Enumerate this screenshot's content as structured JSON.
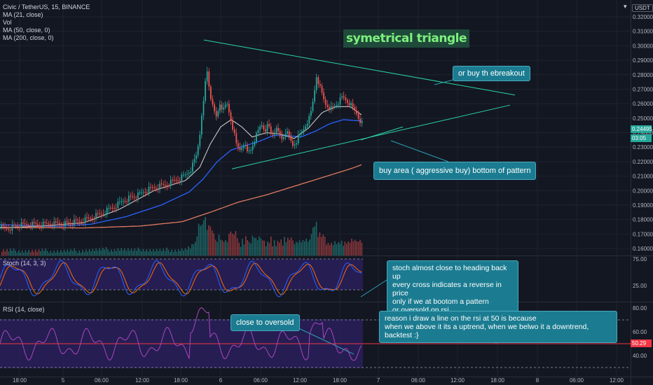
{
  "legend": {
    "symbol": "Civic / TetherUS, 15, BINANCE",
    "ma21": "MA (21, close)",
    "vol": "Vol",
    "ma50": "MA (50, close, 0)",
    "ma200": "MA (200, close, 0)"
  },
  "currency_tag": "USDT",
  "stoch_label": "Stoch (14, 3, 3)",
  "rsi_label": "RSI (14, close)",
  "price_tag": "0.24495",
  "timer_tag": "03:05",
  "rsi_tag": "50.29",
  "annotations": {
    "title": "symetrical triangle",
    "breakout": "or buy th ebreakout",
    "buy_area": "buy area ( aggressive buy) bottom of pattern",
    "stoch_note_1": "stoch almost close to heading back up",
    "stoch_note_2": "every cross indicates a reverse in price",
    "stoch_note_3": "only if we at bootom a pattern",
    "stoch_note_4": "or oversold on rsi",
    "rsi_note_1": "reason i draw a line on the rsi at 50 is because",
    "rsi_note_2": "when we above it its a uptrend, when we belwo it a downtrend, backtest :}",
    "oversold": "close to oversold"
  },
  "colors": {
    "background": "#131722",
    "up": "#26a69a",
    "down": "#ef5350",
    "ma21": "#c8c8c8",
    "ma50": "#2962ff",
    "ma200": "#e07a5f",
    "trendline": "#2bd4a4",
    "pane": "#2a1f5c",
    "stoch_k": "#2962ff",
    "stoch_d": "#ff6d00",
    "rsi": "#ab47bc",
    "rsi_mid": "#f23645",
    "note": "#1b7c91",
    "title_text": "#7cf07c"
  },
  "chart_data": {
    "type": "candlestick",
    "price_axis": {
      "ticks": [
        "0.32000",
        "0.31000",
        "0.30000",
        "0.29000",
        "0.28000",
        "0.27000",
        "0.26000",
        "0.25000",
        "0.24000",
        "0.23000",
        "0.22000",
        "0.21000",
        "0.20000",
        "0.19000",
        "0.18000",
        "0.17000",
        "0.16000"
      ],
      "range": [
        0.155,
        0.325
      ]
    },
    "time_axis": {
      "ticks": [
        "18:00",
        "5",
        "06:00",
        "12:00",
        "18:00",
        "6",
        "06:00",
        "12:00",
        "18:00",
        "7",
        "06:00",
        "12:00",
        "18:00",
        "8",
        "06:00",
        "12:00"
      ]
    },
    "price_anchors": [
      [
        0,
        0.1745
      ],
      [
        10,
        0.1738
      ],
      [
        25,
        0.1755
      ],
      [
        40,
        0.1762
      ],
      [
        55,
        0.176
      ],
      [
        70,
        0.1768
      ],
      [
        85,
        0.177
      ],
      [
        100,
        0.1772
      ],
      [
        115,
        0.1785
      ],
      [
        125,
        0.18
      ],
      [
        135,
        0.182
      ],
      [
        145,
        0.184
      ],
      [
        155,
        0.187
      ],
      [
        165,
        0.1895
      ],
      [
        175,
        0.193
      ],
      [
        185,
        0.195
      ],
      [
        195,
        0.196
      ],
      [
        205,
        0.199
      ],
      [
        215,
        0.201
      ],
      [
        225,
        0.2025
      ],
      [
        235,
        0.2035
      ],
      [
        245,
        0.206
      ],
      [
        255,
        0.208
      ],
      [
        265,
        0.211
      ],
      [
        272,
        0.215
      ],
      [
        280,
        0.225
      ],
      [
        286,
        0.245
      ],
      [
        290,
        0.262
      ],
      [
        294,
        0.285
      ],
      [
        298,
        0.27
      ],
      [
        303,
        0.256
      ],
      [
        308,
        0.25
      ],
      [
        313,
        0.26
      ],
      [
        318,
        0.255
      ],
      [
        323,
        0.26
      ],
      [
        327,
        0.252
      ],
      [
        332,
        0.242
      ],
      [
        337,
        0.23
      ],
      [
        342,
        0.228
      ],
      [
        347,
        0.233
      ],
      [
        352,
        0.226
      ],
      [
        357,
        0.228
      ],
      [
        362,
        0.235
      ],
      [
        367,
        0.24
      ],
      [
        372,
        0.246
      ],
      [
        377,
        0.242
      ],
      [
        382,
        0.245
      ],
      [
        387,
        0.238
      ],
      [
        392,
        0.242
      ],
      [
        397,
        0.239
      ],
      [
        402,
        0.235
      ],
      [
        407,
        0.241
      ],
      [
        412,
        0.236
      ],
      [
        417,
        0.231
      ],
      [
        422,
        0.234
      ],
      [
        427,
        0.238
      ],
      [
        432,
        0.242
      ],
      [
        437,
        0.247
      ],
      [
        442,
        0.251
      ],
      [
        447,
        0.265
      ],
      [
        451,
        0.28
      ],
      [
        455,
        0.272
      ],
      [
        459,
        0.266
      ],
      [
        463,
        0.26
      ],
      [
        468,
        0.258
      ],
      [
        473,
        0.256
      ],
      [
        478,
        0.259
      ],
      [
        483,
        0.261
      ],
      [
        488,
        0.264
      ],
      [
        493,
        0.262
      ],
      [
        498,
        0.26
      ],
      [
        503,
        0.256
      ],
      [
        508,
        0.253
      ],
      [
        512,
        0.249
      ],
      [
        517,
        0.245
      ]
    ],
    "ma21_anchors": [
      [
        0,
        0.1742
      ],
      [
        60,
        0.1755
      ],
      [
        120,
        0.1778
      ],
      [
        170,
        0.187
      ],
      [
        220,
        0.2
      ],
      [
        265,
        0.207
      ],
      [
        285,
        0.216
      ],
      [
        300,
        0.232
      ],
      [
        315,
        0.244
      ],
      [
        330,
        0.249
      ],
      [
        345,
        0.244
      ],
      [
        360,
        0.237
      ],
      [
        380,
        0.24
      ],
      [
        400,
        0.239
      ],
      [
        420,
        0.236
      ],
      [
        440,
        0.243
      ],
      [
        460,
        0.254
      ],
      [
        480,
        0.258
      ],
      [
        500,
        0.258
      ],
      [
        517,
        0.252
      ]
    ],
    "ma50_anchors": [
      [
        0,
        0.1765
      ],
      [
        80,
        0.1752
      ],
      [
        130,
        0.1768
      ],
      [
        180,
        0.182
      ],
      [
        230,
        0.19
      ],
      [
        270,
        0.199
      ],
      [
        290,
        0.208
      ],
      [
        310,
        0.22
      ],
      [
        330,
        0.228
      ],
      [
        350,
        0.231
      ],
      [
        370,
        0.234
      ],
      [
        390,
        0.238
      ],
      [
        410,
        0.238
      ],
      [
        430,
        0.237
      ],
      [
        450,
        0.241
      ],
      [
        470,
        0.246
      ],
      [
        490,
        0.249
      ],
      [
        517,
        0.248
      ]
    ],
    "ma200_anchors": [
      [
        0,
        0.1745
      ],
      [
        120,
        0.1742
      ],
      [
        200,
        0.1755
      ],
      [
        260,
        0.1785
      ],
      [
        300,
        0.185
      ],
      [
        340,
        0.192
      ],
      [
        380,
        0.197
      ],
      [
        420,
        0.203
      ],
      [
        460,
        0.209
      ],
      [
        500,
        0.215
      ],
      [
        517,
        0.218
      ]
    ],
    "trendlines": [
      {
        "from": [
          291,
          0.304
        ],
        "to": [
          735,
          0.266
        ]
      },
      {
        "from": [
          331,
          0.215
        ],
        "to": [
          728,
          0.259
        ]
      },
      {
        "from": [
          515,
          0.235
        ],
        "to": [
          575,
          0.244
        ]
      }
    ],
    "stoch_axis": {
      "ticks": [
        "75.00",
        "25.00"
      ]
    },
    "rsi_axis": {
      "ticks": [
        "80.00",
        "60.00",
        "40.00"
      ],
      "bands": [
        70,
        50,
        30
      ]
    }
  }
}
